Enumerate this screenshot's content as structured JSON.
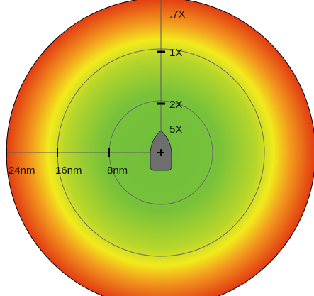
{
  "zoom_labels": {
    "z07": ".7X",
    "z1": "1X",
    "z2": "2X",
    "z5": "5X"
  },
  "range_labels": {
    "r24": "24nm",
    "r16": "16nm",
    "r8": "8nm"
  },
  "colors": {
    "center": "#6fbe3c",
    "mid": "#b7d62a",
    "yellow": "#f2ea1c",
    "orange": "#f29a1e",
    "edge": "#e23b12",
    "ring": "#6a6a6a",
    "vessel": "#6e6e6e"
  },
  "icons": {
    "vessel": "boat-icon",
    "center_mark": "crosshair-icon"
  }
}
